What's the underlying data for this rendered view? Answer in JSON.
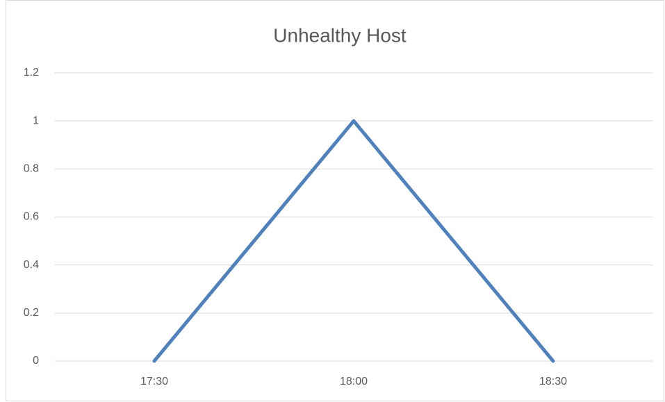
{
  "chart_data": {
    "type": "line",
    "title": "Unhealthy Host",
    "categories": [
      "17:30",
      "18:00",
      "18:30"
    ],
    "values": [
      0,
      1,
      0
    ],
    "color": "#4f81bd",
    "ylim": [
      0,
      1.2
    ],
    "yticks": [
      0,
      0.2,
      0.4,
      0.6,
      0.8,
      1,
      1.2
    ],
    "grid": true
  }
}
